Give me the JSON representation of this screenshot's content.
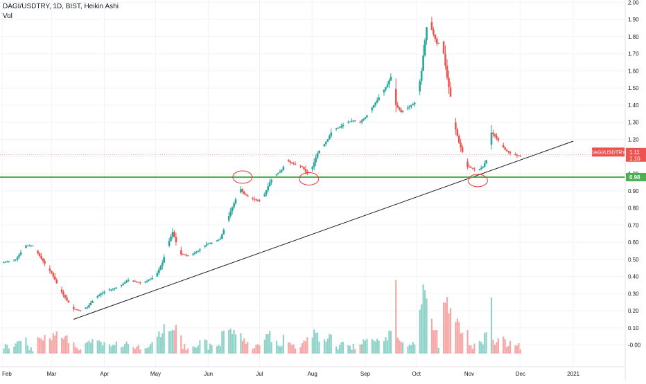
{
  "header": {
    "symbol_line": "DAGI/USDTRY, 1D, BIST, Heikin Ashi",
    "volume_label": "Vol"
  },
  "price_labels": {
    "symbol_tag": "DAGI/USDTRY",
    "current_high": "1.11",
    "current_close": "1.10",
    "support_level": "0.98"
  },
  "colors": {
    "up": "#26a69a",
    "down": "#ef5350",
    "vol_up": "#8ed2c8",
    "vol_down": "#f5a7a5",
    "support_line": "#4caf50",
    "trend_line": "#131722",
    "grid": "#f0f3fa",
    "axis_text": "#131722",
    "circle": "#e53935"
  },
  "chart_data": {
    "type": "candlestick",
    "ylim": [
      -0.05,
      2.05
    ],
    "yticks": [
      -0.0,
      0.1,
      0.2,
      0.3,
      0.4,
      0.5,
      0.6,
      0.7,
      0.8,
      0.9,
      1.0,
      1.1,
      1.2,
      1.3,
      1.4,
      1.5,
      1.6,
      1.7,
      1.8,
      1.9,
      2.0
    ],
    "ytick_labels": [
      "-0.00",
      "0.10",
      "0.20",
      "0.30",
      "0.40",
      "0.50",
      "0.60",
      "0.70",
      "0.80",
      "0.90",
      "1.00",
      "1.10",
      "1.20",
      "1.30",
      "1.40",
      "1.50",
      "1.60",
      "1.70",
      "1.80",
      "1.90",
      "2.00"
    ],
    "xtick_labels": [
      {
        "label": "Feb",
        "day": 0
      },
      {
        "label": "Mar",
        "day": 29
      },
      {
        "label": "Apr",
        "day": 60
      },
      {
        "label": "May",
        "day": 90
      },
      {
        "label": "Jun",
        "day": 121
      },
      {
        "label": "Jul",
        "day": 151
      },
      {
        "label": "Aug",
        "day": 182
      },
      {
        "label": "Sep",
        "day": 213
      },
      {
        "label": "Oct",
        "day": 243
      },
      {
        "label": "Nov",
        "day": 274
      },
      {
        "label": "Dec",
        "day": 304
      },
      {
        "label": "2021",
        "day": 335
      }
    ],
    "anchors": [
      [
        0,
        0.48
      ],
      [
        8,
        0.5
      ],
      [
        14,
        0.58
      ],
      [
        18,
        0.58
      ],
      [
        22,
        0.52
      ],
      [
        26,
        0.46
      ],
      [
        29,
        0.42
      ],
      [
        33,
        0.34
      ],
      [
        38,
        0.26
      ],
      [
        42,
        0.21
      ],
      [
        46,
        0.2
      ],
      [
        50,
        0.22
      ],
      [
        54,
        0.27
      ],
      [
        58,
        0.3
      ],
      [
        62,
        0.32
      ],
      [
        66,
        0.33
      ],
      [
        70,
        0.35
      ],
      [
        74,
        0.38
      ],
      [
        78,
        0.37
      ],
      [
        82,
        0.36
      ],
      [
        86,
        0.38
      ],
      [
        90,
        0.4
      ],
      [
        94,
        0.48
      ],
      [
        97,
        0.58
      ],
      [
        100,
        0.66
      ],
      [
        102,
        0.6
      ],
      [
        105,
        0.53
      ],
      [
        110,
        0.52
      ],
      [
        115,
        0.55
      ],
      [
        120,
        0.59
      ],
      [
        124,
        0.6
      ],
      [
        128,
        0.62
      ],
      [
        131,
        0.7
      ],
      [
        134,
        0.78
      ],
      [
        137,
        0.85
      ],
      [
        140,
        0.91
      ],
      [
        142,
        0.88
      ],
      [
        145,
        0.86
      ],
      [
        148,
        0.85
      ],
      [
        151,
        0.84
      ],
      [
        154,
        0.88
      ],
      [
        157,
        0.95
      ],
      [
        160,
        0.99
      ],
      [
        164,
        1.02
      ],
      [
        167,
        1.08
      ],
      [
        170,
        1.06
      ],
      [
        173,
        1.05
      ],
      [
        176,
        1.04
      ],
      [
        179,
        1.0
      ],
      [
        182,
        1.04
      ],
      [
        185,
        1.12
      ],
      [
        188,
        1.16
      ],
      [
        191,
        1.2
      ],
      [
        194,
        1.26
      ],
      [
        198,
        1.27
      ],
      [
        202,
        1.3
      ],
      [
        206,
        1.31
      ],
      [
        210,
        1.3
      ],
      [
        214,
        1.34
      ],
      [
        218,
        1.4
      ],
      [
        222,
        1.46
      ],
      [
        226,
        1.52
      ],
      [
        229,
        1.59
      ],
      [
        231,
        1.4
      ],
      [
        234,
        1.36
      ],
      [
        237,
        1.38
      ],
      [
        240,
        1.4
      ],
      [
        243,
        1.42
      ],
      [
        246,
        1.6
      ],
      [
        248,
        1.78
      ],
      [
        250,
        1.93
      ],
      [
        252,
        1.84
      ],
      [
        255,
        1.76
      ],
      [
        258,
        1.77
      ],
      [
        261,
        1.56
      ],
      [
        263,
        1.45
      ],
      [
        265,
        1.3
      ],
      [
        268,
        1.18
      ],
      [
        271,
        1.1
      ],
      [
        273,
        1.04
      ],
      [
        276,
        1.03
      ],
      [
        279,
        1.02
      ],
      [
        282,
        1.04
      ],
      [
        285,
        1.1
      ],
      [
        287,
        1.24
      ],
      [
        289,
        1.22
      ],
      [
        292,
        1.18
      ],
      [
        295,
        1.14
      ],
      [
        298,
        1.12
      ],
      [
        301,
        1.11
      ],
      [
        304,
        1.1
      ]
    ],
    "trend_line": {
      "start": [
        42,
        0.15
      ],
      "end": [
        335,
        1.19
      ]
    },
    "support_level": 0.98,
    "current_price_line": 1.11,
    "highlight_circles": [
      {
        "day": 141,
        "price": 0.98
      },
      {
        "day": 180,
        "price": 0.97
      },
      {
        "day": 279,
        "price": 0.96
      }
    ]
  }
}
